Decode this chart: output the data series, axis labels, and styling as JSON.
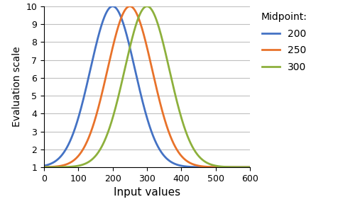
{
  "midpoints": [
    200,
    250,
    300
  ],
  "sigma": 65,
  "amplitude": 9,
  "baseline": 1,
  "colors": [
    "#4472C4",
    "#E8722A",
    "#8DB03C"
  ],
  "labels": [
    "200",
    "250",
    "300"
  ],
  "legend_title": "Midpoint:",
  "xlabel": "Input values",
  "ylabel": "Evaluation scale",
  "xlim": [
    0,
    600
  ],
  "ylim": [
    1,
    10
  ],
  "xticks": [
    0,
    100,
    200,
    300,
    400,
    500,
    600
  ],
  "yticks": [
    1,
    2,
    3,
    4,
    5,
    6,
    7,
    8,
    9,
    10
  ],
  "xlabel_fontsize": 11,
  "ylabel_fontsize": 10,
  "legend_fontsize": 10,
  "tick_fontsize": 9,
  "line_width": 2.0,
  "figwidth": 4.76,
  "figheight": 2.95,
  "dpi": 100
}
